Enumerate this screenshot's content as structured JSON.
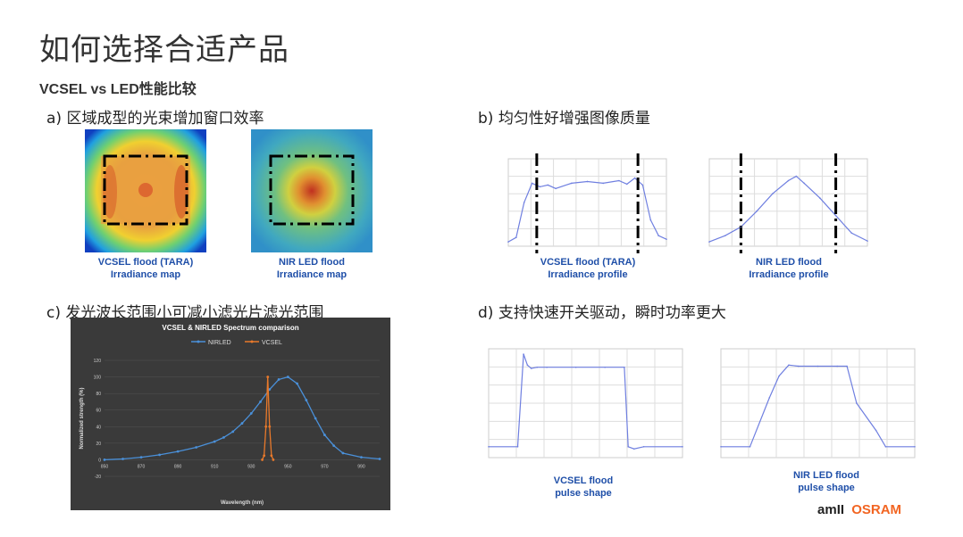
{
  "page": {
    "title": "如何选择合适产品",
    "subtitle": "VCSEL  vs LED性能比较"
  },
  "sections": {
    "a": "a)   区域成型的光束增加窗口效率",
    "b": "b)   均匀性好增强图像质量",
    "c": "c) 发光波长范围小可减小滤光片滤光范围",
    "d": "d) 支持快速开关驱动，瞬时功率更大"
  },
  "captions": {
    "vcsel_irr_map": [
      "VCSEL flood (TARA)",
      "Irradiance map"
    ],
    "led_irr_map": [
      "NIR LED flood",
      "Irradiance map"
    ],
    "vcsel_irr_profile": [
      "VCSEL flood (TARA)",
      "Irradiance profile"
    ],
    "led_irr_profile": [
      "NIR LED flood",
      "Irradiance profile"
    ],
    "vcsel_pulse": [
      "VCSEL flood",
      "pulse shape"
    ],
    "led_pulse": [
      "NIR LED flood",
      "pulse shape"
    ]
  },
  "logo": {
    "ams": "am",
    "osram": "OSRAM",
    "colors": {
      "ams": "#222222",
      "osram": "#f26522"
    }
  },
  "chart_data": [
    {
      "type": "line",
      "title": "VCSEL & NIRLED Spectrum comparison",
      "xlabel": "Wavelength (nm)",
      "ylabel": "Normalized strength (%)",
      "xlim": [
        850,
        1000
      ],
      "ylim": [
        -20,
        120
      ],
      "x_ticks": [
        850,
        870,
        890,
        910,
        930,
        950,
        970,
        990
      ],
      "y_ticks": [
        -20,
        0,
        20,
        40,
        60,
        80,
        100,
        120
      ],
      "legend_position": "top",
      "series": [
        {
          "name": "NIRLED",
          "color": "#4a90d9",
          "x": [
            850,
            860,
            870,
            880,
            890,
            900,
            910,
            915,
            920,
            925,
            930,
            935,
            940,
            945,
            950,
            955,
            960,
            965,
            970,
            975,
            980,
            990,
            1000
          ],
          "y": [
            0,
            1,
            3,
            6,
            10,
            15,
            22,
            27,
            34,
            44,
            56,
            70,
            85,
            97,
            100,
            92,
            72,
            50,
            30,
            17,
            8,
            3,
            1
          ]
        },
        {
          "name": "VCSEL",
          "color": "#e8792b",
          "x": [
            936,
            937,
            938,
            939,
            940,
            941,
            942
          ],
          "y": [
            0,
            5,
            40,
            100,
            40,
            5,
            0
          ]
        }
      ]
    },
    {
      "type": "line",
      "title": "",
      "caption": "VCSEL flood (TARA) Irradiance profile",
      "series": [
        {
          "name": "",
          "x": [
            0,
            0.05,
            0.1,
            0.15,
            0.2,
            0.25,
            0.3,
            0.4,
            0.5,
            0.6,
            0.7,
            0.75,
            0.8,
            0.85,
            0.9,
            0.95,
            1.0
          ],
          "y": [
            0.05,
            0.1,
            0.5,
            0.72,
            0.68,
            0.7,
            0.66,
            0.72,
            0.74,
            0.72,
            0.75,
            0.71,
            0.78,
            0.7,
            0.3,
            0.12,
            0.08
          ]
        }
      ]
    },
    {
      "type": "line",
      "title": "",
      "caption": "NIR LED flood Irradiance profile",
      "series": [
        {
          "name": "",
          "x": [
            0,
            0.1,
            0.2,
            0.3,
            0.4,
            0.5,
            0.55,
            0.6,
            0.7,
            0.8,
            0.9,
            1.0
          ],
          "y": [
            0.05,
            0.12,
            0.22,
            0.4,
            0.6,
            0.75,
            0.8,
            0.72,
            0.55,
            0.35,
            0.15,
            0.06
          ]
        }
      ]
    },
    {
      "type": "line",
      "title": "",
      "caption": "VCSEL flood pulse shape",
      "series": [
        {
          "name": "",
          "x": [
            0,
            0.15,
            0.18,
            0.2,
            0.22,
            0.25,
            0.3,
            0.45,
            0.6,
            0.7,
            0.72,
            0.75,
            0.8,
            1.0
          ],
          "y": [
            0.1,
            0.1,
            0.95,
            0.85,
            0.82,
            0.83,
            0.83,
            0.83,
            0.83,
            0.83,
            0.1,
            0.08,
            0.1,
            0.1
          ]
        }
      ]
    },
    {
      "type": "line",
      "title": "",
      "caption": "NIR LED flood pulse shape",
      "series": [
        {
          "name": "",
          "x": [
            0,
            0.15,
            0.25,
            0.3,
            0.35,
            0.4,
            0.5,
            0.6,
            0.65,
            0.7,
            0.8,
            0.85,
            1.0
          ],
          "y": [
            0.1,
            0.1,
            0.55,
            0.75,
            0.85,
            0.84,
            0.84,
            0.84,
            0.84,
            0.5,
            0.25,
            0.1,
            0.1
          ]
        }
      ]
    }
  ]
}
